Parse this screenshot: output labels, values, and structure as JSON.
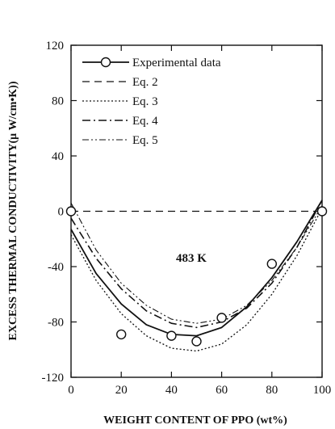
{
  "chart_data": {
    "type": "line",
    "xlabel": "WEIGHT CONTENT OF PPO (wt%)",
    "ylabel": "EXCESS THERMAL CONDUCTIVITY(μ W/cm•K))",
    "xlim": [
      0,
      100
    ],
    "ylim": [
      -120,
      120
    ],
    "xticks": [
      "0",
      "20",
      "40",
      "60",
      "80",
      "100"
    ],
    "yticks": [
      "120",
      "80",
      "40",
      "0",
      "-40",
      "-80",
      "-120"
    ],
    "legend_position": "top-left",
    "grid": false,
    "annotation": "483  K",
    "series": [
      {
        "name": "Experimental data",
        "style": "solid-circles",
        "x": [
          0,
          20,
          40,
          50,
          60,
          80,
          100
        ],
        "y": [
          0,
          -89,
          -90,
          -94,
          -77,
          -38,
          0
        ],
        "fit_x": [
          0,
          10,
          20,
          30,
          40,
          50,
          60,
          70,
          80,
          90,
          100
        ],
        "fit_y": [
          -13,
          -45,
          -67,
          -82,
          -89,
          -90,
          -84,
          -69,
          -48,
          -22,
          8
        ]
      },
      {
        "name": "Eq. 2",
        "style": "dashed",
        "x": [
          0,
          100
        ],
        "y": [
          0,
          0
        ]
      },
      {
        "name": "Eq. 3",
        "style": "dotted",
        "x": [
          0,
          10,
          20,
          30,
          40,
          50,
          60,
          70,
          80,
          90,
          100
        ],
        "y": [
          -17,
          -50,
          -74,
          -90,
          -99,
          -101,
          -96,
          -82,
          -60,
          -32,
          2
        ]
      },
      {
        "name": "Eq. 4",
        "style": "dash-dot",
        "x": [
          0,
          10,
          20,
          30,
          40,
          50,
          60,
          70,
          80,
          90,
          100
        ],
        "y": [
          -5,
          -34,
          -56,
          -72,
          -81,
          -84,
          -80,
          -70,
          -52,
          -26,
          8
        ]
      },
      {
        "name": "Eq. 5",
        "style": "dash-dot-dot",
        "x": [
          0,
          10,
          20,
          30,
          40,
          50,
          60,
          70,
          80,
          90,
          100
        ],
        "y": [
          6,
          -28,
          -52,
          -68,
          -78,
          -81,
          -78,
          -68,
          -50,
          -26,
          4
        ]
      }
    ]
  }
}
